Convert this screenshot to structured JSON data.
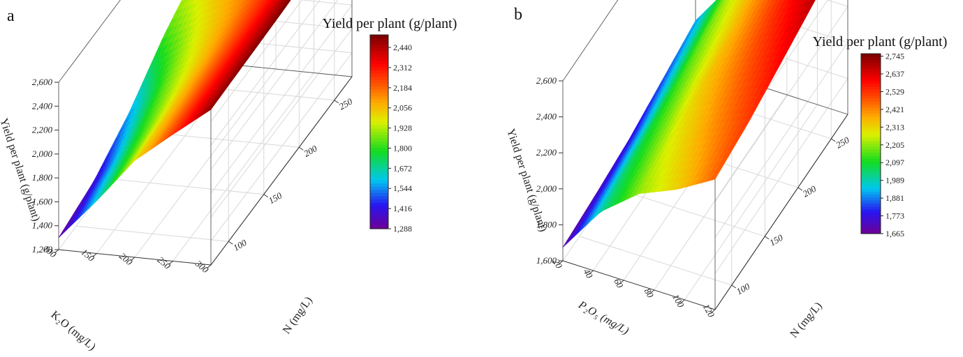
{
  "chart_data": [
    {
      "panel_label": "a",
      "type": "surface3d",
      "colorbar": {
        "title": "Yield per plant  (g/plant)",
        "ticks": [
          "2,440",
          "2,312",
          "2,184",
          "2,056",
          "1,928",
          "1,800",
          "1,672",
          "1,544",
          "1,416",
          "1,288"
        ],
        "range": [
          1288,
          2520
        ]
      },
      "z_axis": {
        "label": "Yield per plant  (g/plant)",
        "ticks": [
          "1,200",
          "1,400",
          "1,600",
          "1,800",
          "2,000",
          "2,200",
          "2,400",
          "2,600"
        ],
        "range": [
          1200,
          2600
        ]
      },
      "x_axis": {
        "label": "K₂O (mg/L)",
        "ticks": [
          "100",
          "150",
          "200",
          "250",
          "300"
        ],
        "range": [
          100,
          300
        ]
      },
      "y_axis": {
        "label": "N (mg/L)",
        "ticks": [
          "100",
          "150",
          "200",
          "250"
        ],
        "range": [
          80,
          280
        ]
      },
      "grid": true,
      "surface": {
        "x": [
          100,
          150,
          200,
          250,
          300
        ],
        "y": [
          80,
          130,
          180,
          230,
          280
        ],
        "z": [
          [
            1300,
            1640,
            2010,
            2260,
            2500
          ],
          [
            1380,
            1740,
            2040,
            2280,
            2510
          ],
          [
            1560,
            1860,
            2080,
            2300,
            2520
          ],
          [
            1820,
            1990,
            2140,
            2320,
            2540
          ],
          [
            2010,
            2120,
            2220,
            2360,
            2560
          ]
        ]
      }
    },
    {
      "panel_label": "b",
      "type": "surface3d",
      "colorbar": {
        "title": "Yield per plant  (g/plant)",
        "ticks": [
          "2,745",
          "2,637",
          "2,529",
          "2,421",
          "2,313",
          "2,205",
          "2,097",
          "1,989",
          "1,881",
          "1,773",
          "1,665"
        ],
        "range": [
          1665,
          2760
        ]
      },
      "z_axis": {
        "label": "Yield per plant  (g/plant)",
        "ticks": [
          "1,600",
          "1,800",
          "2,000",
          "2,200",
          "2,400",
          "2,600"
        ],
        "range": [
          1600,
          2800
        ]
      },
      "x_axis": {
        "label": "P₂O₅ (mg/L)",
        "ticks": [
          "20",
          "40",
          "60",
          "80",
          "100",
          "120"
        ],
        "range": [
          20,
          120
        ]
      },
      "y_axis": {
        "label": "N (mg/L)",
        "ticks": [
          "100",
          "150",
          "200",
          "250"
        ],
        "range": [
          80,
          280
        ]
      },
      "grid": true,
      "surface": {
        "x": [
          20,
          45,
          70,
          95,
          120
        ],
        "y": [
          80,
          130,
          180,
          230,
          280
        ],
        "z": [
          [
            1690,
            2010,
            2210,
            2320,
            2470
          ],
          [
            1720,
            2060,
            2270,
            2400,
            2520
          ],
          [
            1760,
            2110,
            2330,
            2470,
            2600
          ],
          [
            1830,
            2170,
            2370,
            2540,
            2680
          ],
          [
            1900,
            2230,
            2420,
            2600,
            2760
          ]
        ]
      }
    }
  ]
}
